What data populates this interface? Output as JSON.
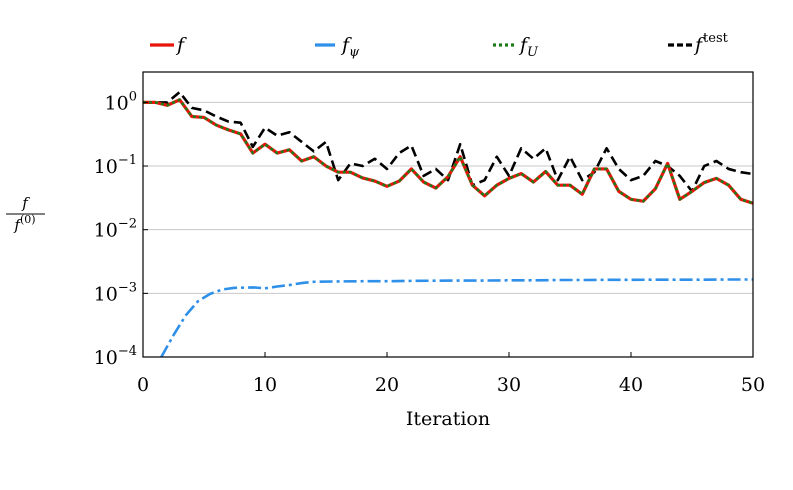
{
  "chart_data": {
    "type": "line",
    "xlabel": "Iteration",
    "ylabel": {
      "numerator": "f",
      "denominator_base": "f",
      "denominator_sup": "(0)"
    },
    "xlim": [
      0,
      50
    ],
    "ylim": [
      0.0001,
      3
    ],
    "yscale": "log",
    "grid": "horizontal at decades",
    "legend_position": "top",
    "x_ticks": [
      "0",
      "10",
      "20",
      "30",
      "40",
      "50"
    ],
    "y_ticks": [
      {
        "base": "10",
        "exp": "0",
        "value": 1
      },
      {
        "base": "10",
        "exp": "−1",
        "value": 0.1
      },
      {
        "base": "10",
        "exp": "−2",
        "value": 0.01
      },
      {
        "base": "10",
        "exp": "−3",
        "value": 0.001
      },
      {
        "base": "10",
        "exp": "−4",
        "value": 0.0001
      }
    ],
    "x": [
      0,
      1,
      2,
      3,
      4,
      5,
      6,
      7,
      8,
      9,
      10,
      11,
      12,
      13,
      14,
      15,
      16,
      17,
      18,
      19,
      20,
      21,
      22,
      23,
      24,
      25,
      26,
      27,
      28,
      29,
      30,
      31,
      32,
      33,
      34,
      35,
      36,
      37,
      38,
      39,
      40,
      41,
      42,
      43,
      44,
      45,
      46,
      47,
      48,
      49,
      50
    ],
    "series": [
      {
        "name": "f",
        "legend_base": "f",
        "legend_sup": "",
        "legend_sub": "",
        "color": "#e8150b",
        "dash": "",
        "values": [
          1.0,
          1.0,
          0.9,
          1.1,
          0.6,
          0.58,
          0.44,
          0.37,
          0.32,
          0.16,
          0.22,
          0.16,
          0.18,
          0.12,
          0.14,
          0.1,
          0.08,
          0.08,
          0.065,
          0.058,
          0.048,
          0.058,
          0.09,
          0.056,
          0.045,
          0.068,
          0.14,
          0.05,
          0.034,
          0.05,
          0.064,
          0.076,
          0.056,
          0.082,
          0.05,
          0.05,
          0.036,
          0.09,
          0.09,
          0.04,
          0.03,
          0.028,
          0.044,
          0.11,
          0.03,
          0.04,
          0.055,
          0.064,
          0.05,
          0.03,
          0.026
        ]
      },
      {
        "name": "f_psi",
        "legend_base": "f",
        "legend_sup": "",
        "legend_sub": "ψ",
        "color": "#2e90e8",
        "dash": "13 4 3 4",
        "x_values": [
          1.5,
          2.5,
          3.5,
          4.5,
          5.5,
          6.5,
          7.5,
          9,
          10,
          11,
          12,
          13,
          14,
          16,
          18,
          20,
          22,
          24,
          26,
          28,
          30,
          32,
          34,
          36,
          38,
          40,
          42,
          44,
          46,
          48,
          50
        ],
        "values": [
          0.0001,
          0.00022,
          0.00045,
          0.00075,
          0.00098,
          0.00115,
          0.00122,
          0.00124,
          0.0012,
          0.00128,
          0.00135,
          0.00145,
          0.00152,
          0.00154,
          0.00155,
          0.00155,
          0.00157,
          0.00158,
          0.00159,
          0.00159,
          0.0016,
          0.0016,
          0.00162,
          0.00162,
          0.00163,
          0.00163,
          0.00164,
          0.00164,
          0.00164,
          0.00165,
          0.00165
        ]
      },
      {
        "name": "f_U",
        "legend_base": "f",
        "legend_sup": "",
        "legend_sub": "U",
        "color": "#1c7c18",
        "dash": "3 3",
        "values": [
          1.0,
          1.0,
          0.9,
          1.1,
          0.6,
          0.58,
          0.44,
          0.37,
          0.32,
          0.16,
          0.22,
          0.16,
          0.18,
          0.12,
          0.14,
          0.1,
          0.08,
          0.08,
          0.065,
          0.058,
          0.048,
          0.058,
          0.09,
          0.056,
          0.045,
          0.068,
          0.14,
          0.05,
          0.034,
          0.05,
          0.064,
          0.076,
          0.056,
          0.082,
          0.05,
          0.05,
          0.036,
          0.09,
          0.09,
          0.04,
          0.03,
          0.028,
          0.044,
          0.11,
          0.03,
          0.04,
          0.055,
          0.064,
          0.05,
          0.03,
          0.026
        ]
      },
      {
        "name": "f_test",
        "legend_base": "f",
        "legend_sup": "test",
        "legend_sub": "",
        "color": "#000000",
        "dash": "10 5",
        "values": [
          1.0,
          1.0,
          1.0,
          1.45,
          0.82,
          0.75,
          0.6,
          0.5,
          0.48,
          0.2,
          0.4,
          0.3,
          0.34,
          0.24,
          0.17,
          0.24,
          0.06,
          0.11,
          0.1,
          0.13,
          0.09,
          0.16,
          0.21,
          0.07,
          0.09,
          0.06,
          0.22,
          0.05,
          0.06,
          0.14,
          0.07,
          0.19,
          0.13,
          0.19,
          0.06,
          0.14,
          0.06,
          0.08,
          0.19,
          0.09,
          0.06,
          0.07,
          0.12,
          0.1,
          0.07,
          0.04,
          0.1,
          0.12,
          0.09,
          0.08,
          0.075
        ]
      }
    ]
  }
}
